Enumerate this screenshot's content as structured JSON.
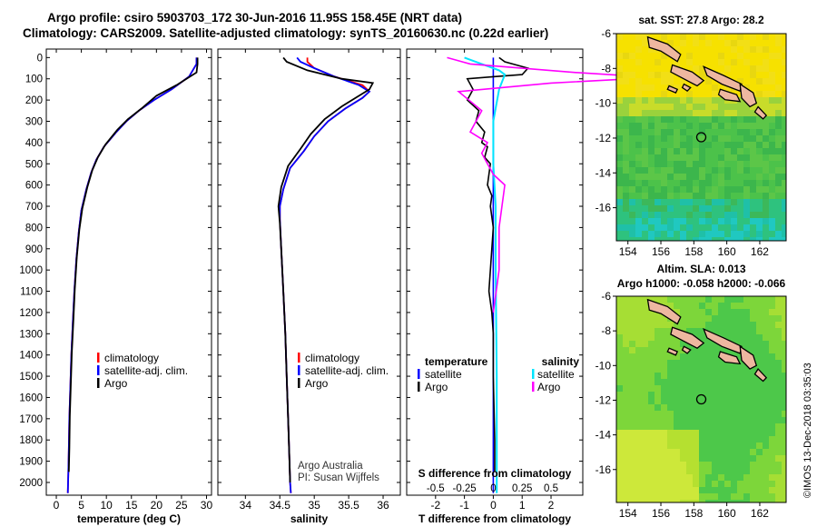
{
  "header": {
    "line1": "Argo profile: csiro 5903703_172 30-Jun-2016 11.95S 158.45E (NRT data)",
    "line2": "Climatology: CARS2009. Satellite-adjusted climatology: synTS_20160630.nc (0.22d earlier)"
  },
  "depth_ticks": [
    "0",
    "100",
    "200",
    "300",
    "400",
    "500",
    "600",
    "700",
    "800",
    "900",
    "1000",
    "1100",
    "1200",
    "1300",
    "1400",
    "1500",
    "1600",
    "1700",
    "1800",
    "1900",
    "2000"
  ],
  "colors": {
    "climatology": "#ff0000",
    "satellite": "#0000ff",
    "argo": "#000000",
    "s_satellite": "#00e5ff",
    "s_argo": "#ff00ff"
  },
  "chart_data": [
    {
      "type": "line",
      "xlabel": "temperature (deg C)",
      "xticks": [
        "0",
        "5",
        "10",
        "15",
        "20",
        "25",
        "30"
      ],
      "xlim": [
        -2,
        31
      ],
      "ylim": [
        2060,
        -40
      ],
      "legend": [
        "climatology",
        "satellite-adj. clim.",
        "Argo"
      ],
      "series": [
        {
          "name": "climatology",
          "x": [
            28.0,
            28.0,
            26.5,
            23,
            19.5,
            16.5,
            14,
            12,
            9.5,
            8,
            7,
            6,
            5,
            4.5,
            4,
            3.6,
            3.3,
            3,
            2.8,
            2.6,
            2.5,
            2.4,
            2.3
          ],
          "y": [
            0,
            30,
            90,
            150,
            200,
            250,
            300,
            350,
            420,
            480,
            540,
            620,
            720,
            820,
            950,
            1100,
            1250,
            1400,
            1550,
            1700,
            1850,
            1950,
            2050
          ]
        },
        {
          "name": "satellite-adj. clim.",
          "x": [
            28.0,
            28.0,
            26.5,
            23,
            19.5,
            16.5,
            14,
            12,
            9.5,
            8,
            7,
            6,
            5,
            4.5,
            4,
            3.6,
            3.3,
            3,
            2.8,
            2.6,
            2.5,
            2.4,
            2.3
          ],
          "y": [
            0,
            30,
            90,
            150,
            200,
            250,
            300,
            350,
            420,
            480,
            540,
            620,
            720,
            820,
            950,
            1100,
            1250,
            1400,
            1550,
            1700,
            1850,
            1950,
            2050
          ]
        },
        {
          "name": "Argo",
          "x": [
            28.2,
            28.2,
            28.0,
            24,
            20,
            17,
            14.3,
            12.2,
            9.8,
            8.3,
            7.2,
            6.2,
            5.2,
            4.6,
            4.1,
            3.7,
            3.4,
            3.1,
            2.9,
            2.7,
            2.6,
            2.5
          ],
          "y": [
            0,
            30,
            70,
            130,
            180,
            240,
            290,
            340,
            410,
            470,
            530,
            610,
            710,
            810,
            940,
            1090,
            1240,
            1390,
            1540,
            1690,
            1840,
            1950
          ]
        }
      ]
    },
    {
      "type": "line",
      "xlabel": "salinity",
      "xticks": [
        "34",
        "34.5",
        "35",
        "35.5",
        "36"
      ],
      "xlim": [
        33.6,
        36.25
      ],
      "ylim": [
        2060,
        -40
      ],
      "legend": [
        "climatology",
        "satellite-adj. clim.",
        "Argo"
      ],
      "annotations": [
        "Argo Australia",
        "PI: Susan Wijffels"
      ],
      "series": [
        {
          "name": "climatology",
          "x": [
            34.9,
            34.9,
            35.0,
            35.3,
            35.7,
            35.8,
            35.7,
            35.45,
            35.2,
            35.0,
            34.85,
            34.65,
            34.55,
            34.5,
            34.5,
            34.52,
            34.55,
            34.58,
            34.6,
            34.62,
            34.64,
            34.65,
            34.66
          ],
          "y": [
            0,
            20,
            50,
            90,
            130,
            160,
            190,
            240,
            300,
            370,
            440,
            520,
            620,
            700,
            760,
            900,
            1100,
            1300,
            1500,
            1700,
            1900,
            2000,
            2050
          ]
        },
        {
          "name": "satellite-adj. clim.",
          "x": [
            34.75,
            34.8,
            35.0,
            35.3,
            35.65,
            35.8,
            35.7,
            35.45,
            35.2,
            35.0,
            34.85,
            34.65,
            34.55,
            34.5,
            34.5,
            34.52,
            34.55,
            34.58,
            34.6,
            34.62,
            34.64,
            34.65,
            34.66
          ],
          "y": [
            0,
            20,
            50,
            90,
            130,
            160,
            190,
            240,
            300,
            370,
            440,
            520,
            620,
            700,
            760,
            900,
            1100,
            1300,
            1500,
            1700,
            1900,
            2000,
            2050
          ]
        },
        {
          "name": "Argo",
          "x": [
            34.55,
            34.6,
            34.9,
            35.4,
            35.85,
            35.8,
            35.65,
            35.4,
            35.15,
            34.95,
            34.8,
            34.62,
            34.52,
            34.48,
            34.5,
            34.52,
            34.55,
            34.58,
            34.6,
            34.62,
            34.64,
            34.65
          ],
          "y": [
            0,
            20,
            60,
            100,
            120,
            150,
            180,
            230,
            290,
            360,
            430,
            510,
            610,
            700,
            780,
            900,
            1100,
            1300,
            1500,
            1700,
            1900,
            2000
          ]
        }
      ]
    },
    {
      "type": "line",
      "xlabel": "T difference from climatology",
      "xlabel_top": "S difference from climatology",
      "xticks": [
        "-2",
        "-1",
        "0",
        "1",
        "2"
      ],
      "xticks_top": [
        "-0.5",
        "-0.25",
        "0",
        "0.25",
        "0.5"
      ],
      "xlim": [
        -3,
        3.1
      ],
      "ylim": [
        2060,
        -40
      ],
      "legend_temperature": [
        "temperature",
        "satellite",
        "Argo"
      ],
      "legend_salinity": [
        "salinity",
        "satellite",
        "Argo"
      ],
      "series": [
        {
          "name": "temperature satellite",
          "x": [
            0,
            0,
            0,
            0,
            0,
            0,
            0,
            0
          ],
          "y": [
            0,
            300,
            600,
            900,
            1200,
            1500,
            1800,
            2050
          ]
        },
        {
          "name": "temperature Argo",
          "x": [
            0.2,
            0.4,
            1.2,
            1.0,
            0,
            -0.9,
            -0.7,
            -0.9,
            -0.5,
            -0.6,
            -0.3,
            -0.4,
            -0.2,
            -0.3,
            -0.1,
            -0.2,
            -0.05,
            -0.1,
            0,
            -0.05,
            -0.1,
            -0.15,
            -0.05,
            0,
            0,
            0.05,
            0.05
          ],
          "y": [
            0,
            20,
            50,
            80,
            90,
            100,
            150,
            200,
            250,
            300,
            350,
            400,
            420,
            470,
            500,
            600,
            650,
            700,
            800,
            900,
            1000,
            1100,
            1200,
            1300,
            1500,
            1800,
            1950
          ]
        },
        {
          "name": "salinity satellite",
          "x": [
            -0.25,
            -0.1,
            0.05,
            0.1,
            0.05,
            0.0,
            0.0,
            0.02,
            0.02,
            0.03,
            0.03,
            0.03
          ],
          "y": [
            0,
            30,
            60,
            80,
            150,
            300,
            500,
            700,
            1000,
            1500,
            1800,
            2050
          ]
        },
        {
          "name": "salinity Argo",
          "x": [
            -0.4,
            -0.2,
            0.7,
            1.3,
            1.2,
            0.5,
            -0.3,
            -0.1,
            -0.2,
            -0.05,
            -0.1,
            -0.05,
            0,
            0.1,
            0.05,
            0.05,
            0
          ],
          "y": [
            0,
            30,
            70,
            90,
            100,
            120,
            160,
            250,
            350,
            400,
            450,
            500,
            550,
            600,
            800,
            1000,
            1200
          ]
        }
      ]
    }
  ],
  "maps": [
    {
      "title": "sat. SST: 27.8  Argo: 28.2",
      "xticks": [
        "154",
        "156",
        "158",
        "160",
        "162"
      ],
      "yticks": [
        "-6",
        "-8",
        "-10",
        "-12",
        "-14",
        "-16"
      ]
    },
    {
      "title": "Altim. SLA: 0.013",
      "subtitle": "Argo h1000: -0.058 h2000: -0.066",
      "xticks": [
        "154",
        "156",
        "158",
        "160",
        "162"
      ],
      "yticks": [
        "-6",
        "-8",
        "-10",
        "-12",
        "-14",
        "-16"
      ]
    }
  ],
  "footer": "©IMOS 13-Dec-2018 03:35:03"
}
